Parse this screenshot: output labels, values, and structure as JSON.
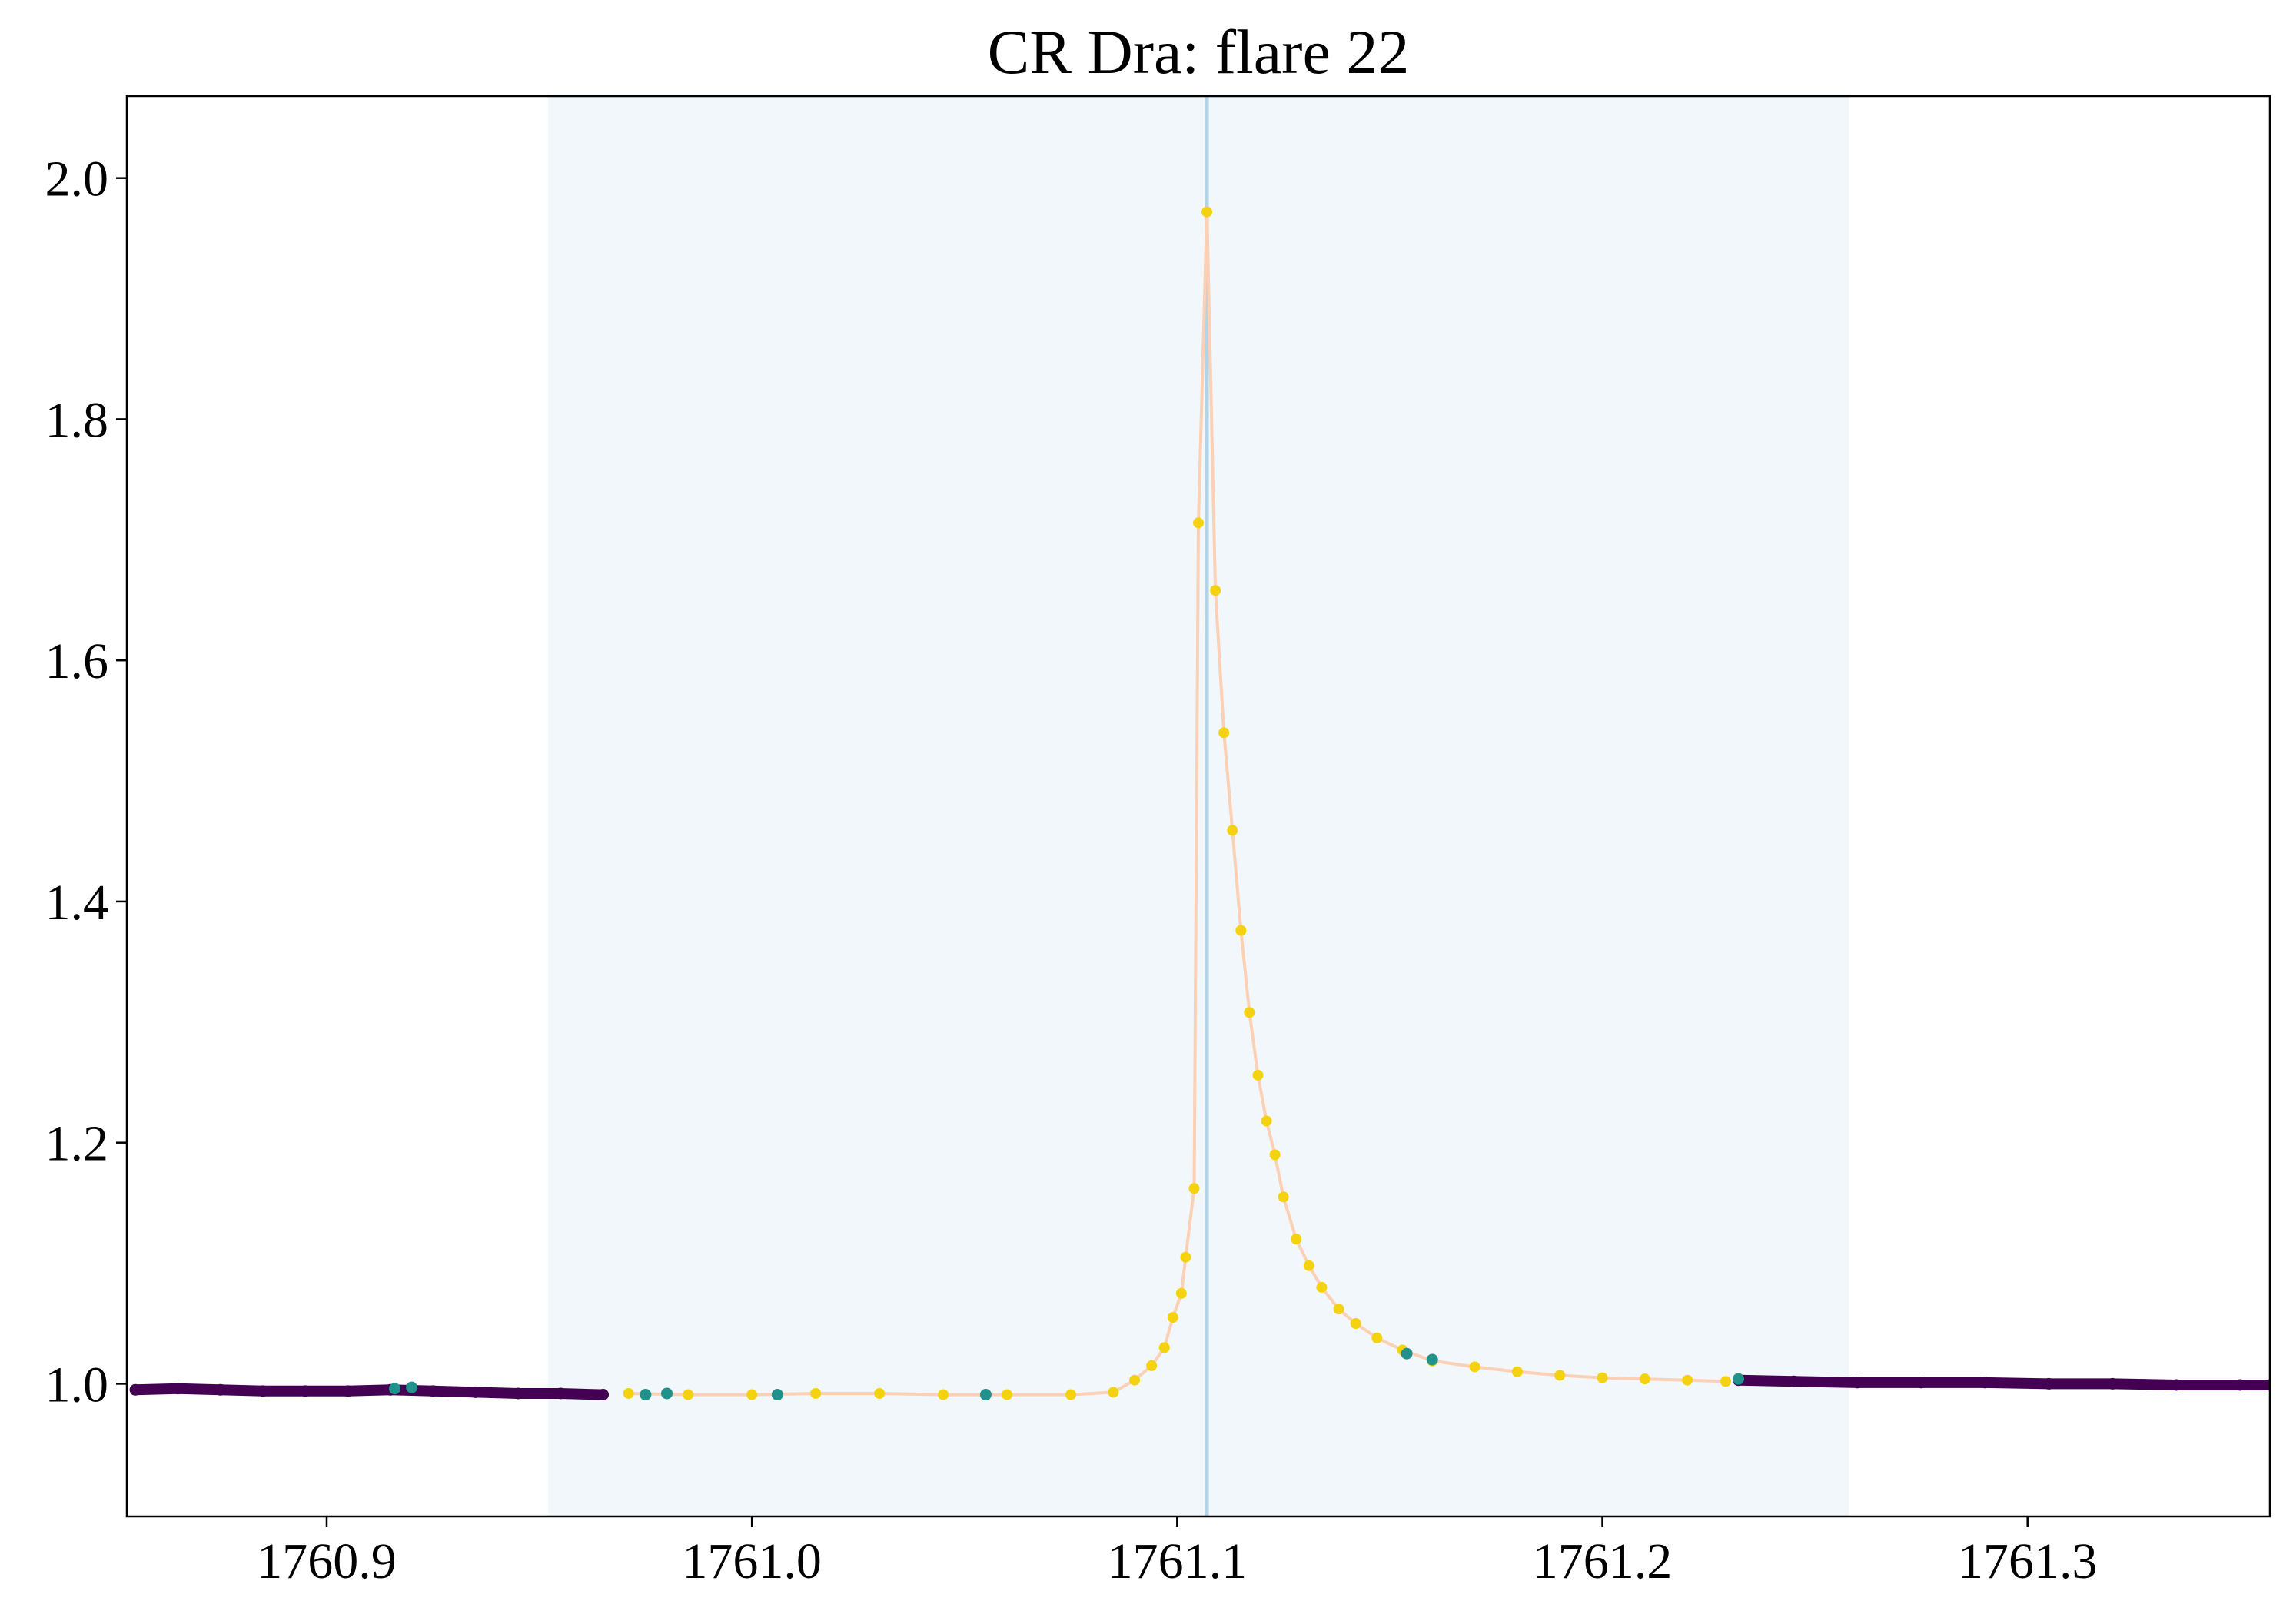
{
  "chart_data": {
    "type": "scatter",
    "title": "CR Dra: flare 22",
    "xlabel": "",
    "ylabel": "",
    "xlim": [
      1760.853,
      1761.357
    ],
    "ylim": [
      0.89,
      2.068
    ],
    "grid": false,
    "xticks": [
      {
        "value": 1760.9,
        "label": "1760.9"
      },
      {
        "value": 1761.0,
        "label": "1761.0"
      },
      {
        "value": 1761.1,
        "label": "1761.1"
      },
      {
        "value": 1761.2,
        "label": "1761.2"
      },
      {
        "value": 1761.3,
        "label": "1761.3"
      }
    ],
    "yticks": [
      {
        "value": 1.0,
        "label": "1.0"
      },
      {
        "value": 1.2,
        "label": "1.2"
      },
      {
        "value": 1.4,
        "label": "1.4"
      },
      {
        "value": 1.6,
        "label": "1.6"
      },
      {
        "value": 1.8,
        "label": "1.8"
      },
      {
        "value": 2.0,
        "label": "2.0"
      }
    ],
    "shaded_region": {
      "x_start": 1760.952,
      "x_end": 1761.258,
      "color": "#f1f7fa"
    },
    "peak_marker_line": {
      "x": 1761.107,
      "color": "#b3d4e6"
    },
    "model_line_color": "#fbd0b4",
    "colors": {
      "quiescent": "#440154",
      "flagged": "#21918c",
      "flare": "#f5d20f"
    },
    "series": [
      {
        "category": "quiescent",
        "x": [
          1760.855,
          1760.865,
          1760.875,
          1760.885,
          1760.895,
          1760.905,
          1760.915,
          1760.925,
          1760.935,
          1760.945,
          1760.955,
          1760.965,
          1761.232,
          1761.245,
          1761.26,
          1761.275,
          1761.29,
          1761.305,
          1761.32,
          1761.335,
          1761.35,
          1761.357
        ],
        "y": [
          0.995,
          0.996,
          0.995,
          0.994,
          0.994,
          0.994,
          0.995,
          0.994,
          0.993,
          0.992,
          0.992,
          0.991,
          1.003,
          1.002,
          1.001,
          1.001,
          1.001,
          1.0,
          1.0,
          0.999,
          0.999,
          0.999
        ]
      },
      {
        "category": "flagged",
        "x": [
          1760.916,
          1760.92,
          1760.975,
          1760.98,
          1761.006,
          1761.055,
          1761.154,
          1761.16,
          1761.232
        ],
        "y": [
          0.996,
          0.997,
          0.991,
          0.992,
          0.991,
          0.991,
          1.025,
          1.02,
          1.004
        ]
      },
      {
        "category": "flare",
        "x": [
          1760.971,
          1760.985,
          1761.0,
          1761.015,
          1761.03,
          1761.045,
          1761.06,
          1761.075,
          1761.085,
          1761.09,
          1761.094,
          1761.097,
          1761.099,
          1761.101,
          1761.102,
          1761.104,
          1761.105,
          1761.107,
          1761.109,
          1761.111,
          1761.113,
          1761.115,
          1761.117,
          1761.119,
          1761.121,
          1761.123,
          1761.125,
          1761.128,
          1761.131,
          1761.134,
          1761.138,
          1761.142,
          1761.147,
          1761.153,
          1761.16,
          1761.17,
          1761.18,
          1761.19,
          1761.2,
          1761.21,
          1761.22,
          1761.229
        ],
        "y": [
          0.992,
          0.991,
          0.991,
          0.992,
          0.992,
          0.991,
          0.991,
          0.991,
          0.993,
          1.003,
          1.015,
          1.03,
          1.055,
          1.075,
          1.105,
          1.162,
          1.714,
          1.972,
          1.658,
          1.54,
          1.459,
          1.376,
          1.308,
          1.256,
          1.218,
          1.19,
          1.155,
          1.12,
          1.098,
          1.08,
          1.062,
          1.05,
          1.038,
          1.028,
          1.019,
          1.014,
          1.01,
          1.007,
          1.005,
          1.004,
          1.003,
          1.002
        ]
      }
    ]
  }
}
